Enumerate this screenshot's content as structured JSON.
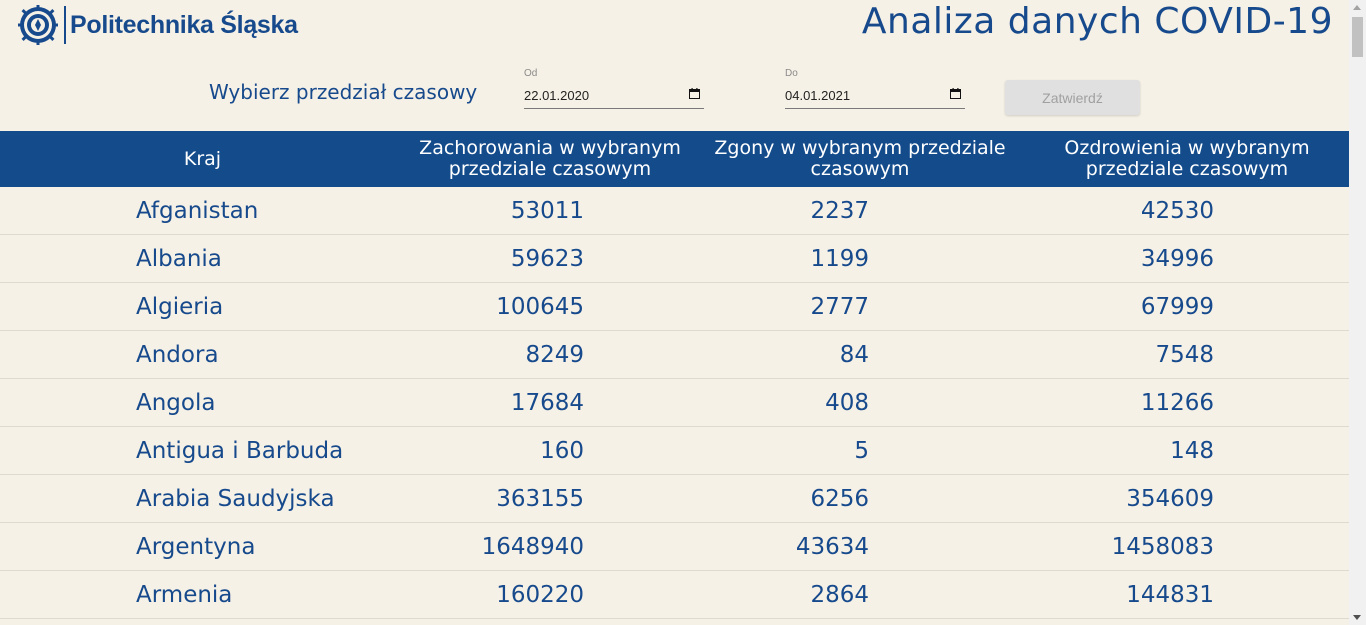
{
  "header": {
    "logo_text": "Politechnika Śląska",
    "title": "Analiza danych COVID-19"
  },
  "range": {
    "label": "Wybierz przedział czasowy",
    "from_caption": "Od",
    "from_value": "22.01.2020",
    "to_caption": "Do",
    "to_value": "04.01.2021",
    "submit_label": "Zatwierdź"
  },
  "table": {
    "headers": [
      "Kraj",
      "Zachorowania w wybranym przedziale czasowym",
      "Zgony w wybranym przedziale czasowym",
      "Ozdrowienia w wybranym przedziale czasowym"
    ],
    "rows": [
      [
        "Afganistan",
        "53011",
        "2237",
        "42530"
      ],
      [
        "Albania",
        "59623",
        "1199",
        "34996"
      ],
      [
        "Algieria",
        "100645",
        "2777",
        "67999"
      ],
      [
        "Andora",
        "8249",
        "84",
        "7548"
      ],
      [
        "Angola",
        "17684",
        "408",
        "11266"
      ],
      [
        "Antigua i Barbuda",
        "160",
        "5",
        "148"
      ],
      [
        "Arabia Saudyjska",
        "363155",
        "6256",
        "354609"
      ],
      [
        "Argentyna",
        "1648940",
        "43634",
        "1458083"
      ],
      [
        "Armenia",
        "160220",
        "2864",
        "144831"
      ]
    ]
  },
  "colors": {
    "background": "#f6f1e6",
    "primary": "#174a8c",
    "header_bg": "#134b8b"
  },
  "icons": {
    "logo": "university-emblem-icon",
    "calendar": "calendar-icon"
  }
}
